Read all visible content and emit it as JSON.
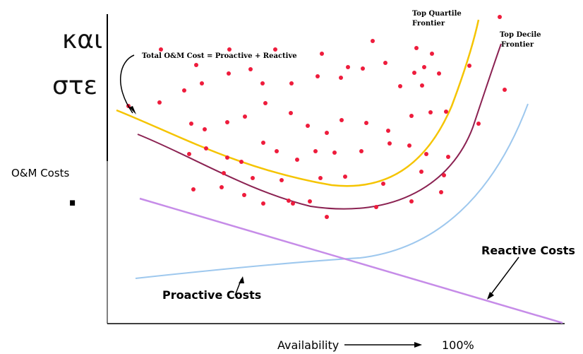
{
  "left_text": {
    "line1": "και",
    "line2": "στε",
    "line3": "."
  },
  "chart_data": {
    "type": "line",
    "xlabel": "Availability",
    "x_end_label": "100%",
    "ylabel": "O&M Costs",
    "grid": false,
    "series": [
      {
        "name": "Total O&M Cost = Proactive + Reactive",
        "color": "#f5c400"
      },
      {
        "name": "Top Quartile Frontier",
        "color": "#f5c400"
      },
      {
        "name": "Top Decile Frontier",
        "color": "#8b2252"
      },
      {
        "name": "Reactive Costs",
        "color": "#c68ce8"
      },
      {
        "name": "Proactive Costs",
        "color": "#9ec8ee"
      }
    ],
    "annotations": {
      "total": "Total O&M Cost = Proactive + Reactive",
      "top_quartile_1": "Top Quartile",
      "top_quartile_2": "Frontier",
      "top_decile_1": "Top Decile",
      "top_decile_2": "Frontier",
      "reactive": "Reactive Costs",
      "proactive": "Proactive Costs"
    },
    "scatter_color": "#ee1c3c"
  }
}
